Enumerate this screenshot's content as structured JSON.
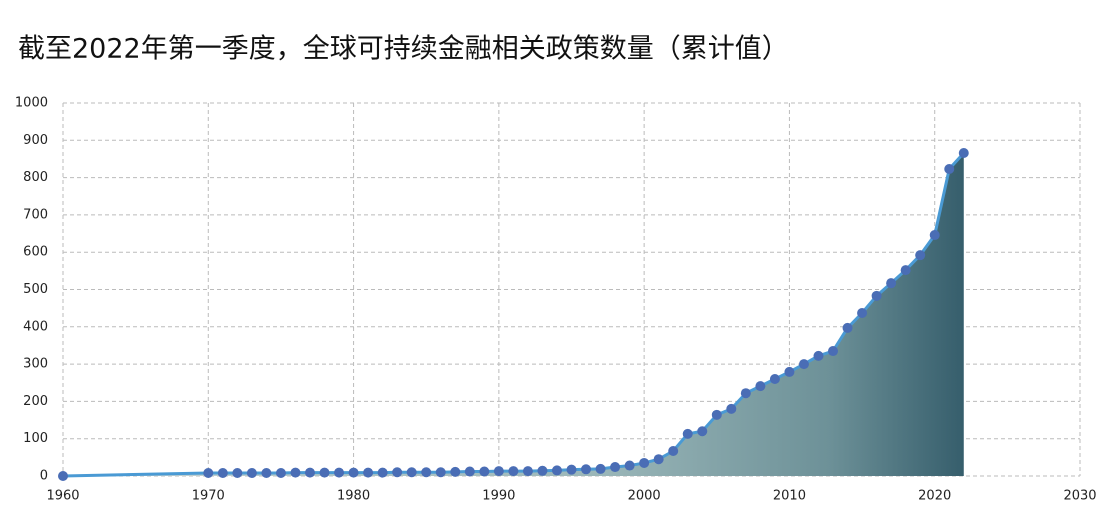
{
  "chart_data": {
    "type": "line",
    "title": "截至2022年第一季度，全球可持续金融相关政策数量（累计值）",
    "x": [
      1960,
      1970,
      1971,
      1972,
      1973,
      1974,
      1975,
      1976,
      1977,
      1978,
      1979,
      1980,
      1981,
      1982,
      1983,
      1984,
      1985,
      1986,
      1987,
      1988,
      1989,
      1990,
      1991,
      1992,
      1993,
      1994,
      1995,
      1996,
      1997,
      1998,
      1999,
      2000,
      2001,
      2002,
      2003,
      2004,
      2005,
      2006,
      2007,
      2008,
      2009,
      2010,
      2011,
      2012,
      2013,
      2014,
      2015,
      2016,
      2017,
      2018,
      2019,
      2020,
      2021,
      2022
    ],
    "series": [
      {
        "color": "#4a9ad4",
        "marker_color": "#4a6db5",
        "values": [
          0,
          8,
          8,
          8,
          8,
          8,
          8,
          9,
          9,
          9,
          9,
          9,
          9,
          9,
          10,
          10,
          10,
          10,
          11,
          12,
          12,
          13,
          13,
          13,
          14,
          15,
          17,
          18,
          19,
          24,
          28,
          35,
          45,
          67,
          113,
          120,
          164,
          180,
          222,
          241,
          260,
          279,
          300,
          322,
          335,
          397,
          437,
          483,
          517,
          552,
          592,
          646,
          823,
          866
        ]
      }
    ],
    "xlim": [
      1960,
      2030
    ],
    "xticks": [
      1960,
      1970,
      1980,
      1990,
      2000,
      2010,
      2020,
      2030
    ],
    "ylim": [
      0,
      1000
    ],
    "yticks": [
      0,
      100,
      200,
      300,
      400,
      500,
      600,
      700,
      800,
      900,
      1000
    ],
    "grid": true
  }
}
